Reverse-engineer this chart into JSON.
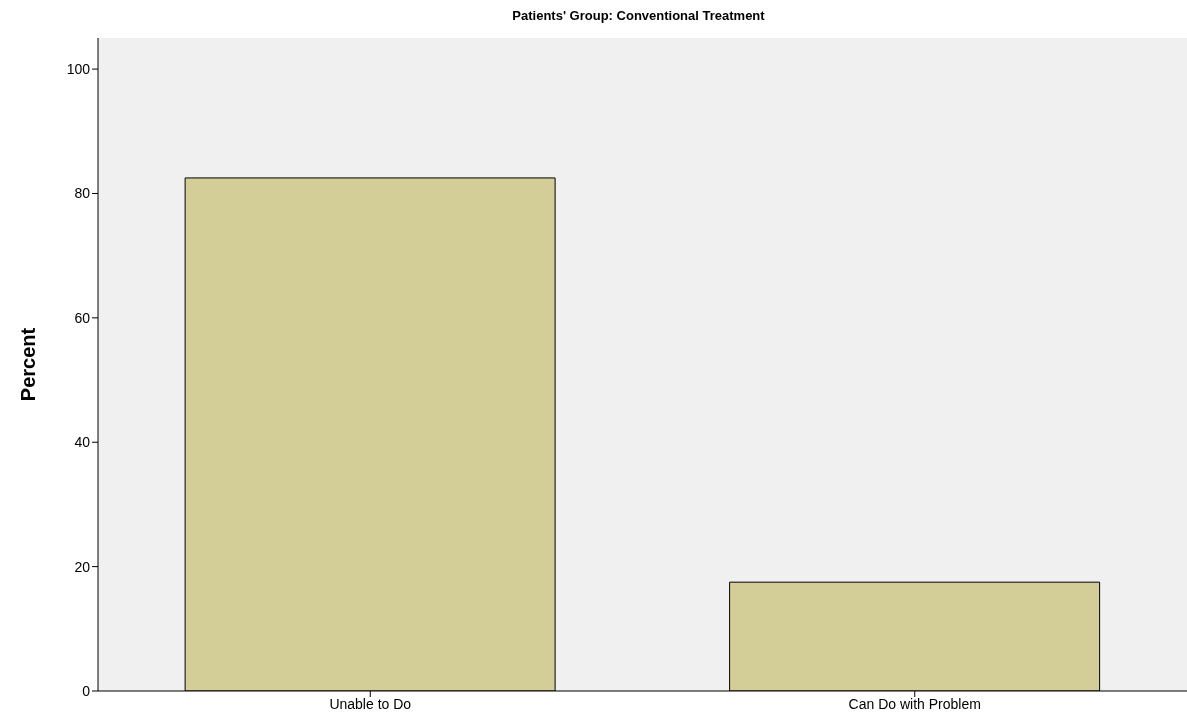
{
  "chart_data": {
    "type": "bar",
    "title": "Patients' Group: Conventional Treatment",
    "ylabel": "Percent",
    "categories": [
      "Unable to Do",
      "Can Do with Problem"
    ],
    "values": [
      82.5,
      17.5
    ],
    "color": "#d3ce97",
    "ylim": [
      0,
      105
    ],
    "yticks": [
      0,
      20,
      40,
      60,
      80,
      100
    ],
    "grid": false,
    "legend": false
  }
}
